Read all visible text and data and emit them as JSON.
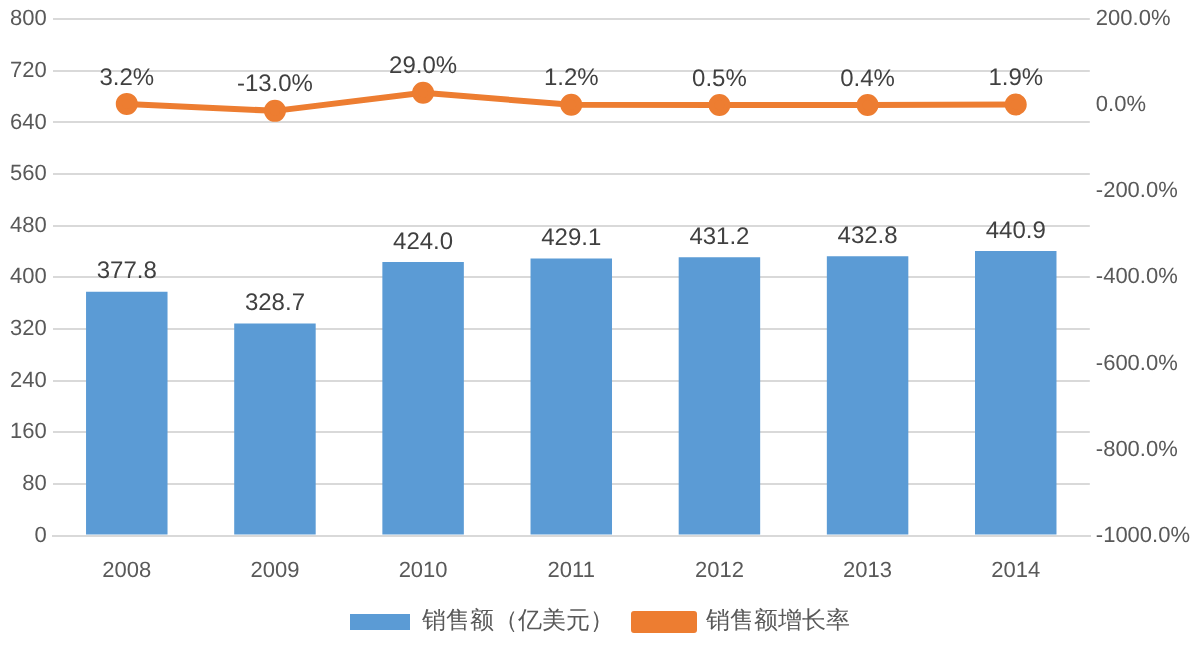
{
  "chart_data": {
    "type": "bar",
    "categories": [
      "2008",
      "2009",
      "2010",
      "2011",
      "2012",
      "2013",
      "2014"
    ],
    "series": [
      {
        "name": "销售额（亿美元）",
        "color": "#5b9bd5",
        "values": [
          377.8,
          328.7,
          424.0,
          429.1,
          431.2,
          432.8,
          440.9
        ],
        "value_labels": [
          "377.8",
          "328.7",
          "424.0",
          "429.1",
          "431.2",
          "432.8",
          "440.9"
        ]
      },
      {
        "name": "销售额增长率",
        "type": "line",
        "axis": "y2",
        "color": "#ed7d31",
        "values": [
          3.2,
          -13.0,
          29.0,
          1.2,
          0.5,
          0.4,
          1.9
        ],
        "value_labels": [
          "3.2%",
          "-13.0%",
          "29.0%",
          "1.2%",
          "0.5%",
          "0.4%",
          "1.9%"
        ]
      }
    ],
    "ylim": [
      0,
      800
    ],
    "yticks": [
      0,
      80,
      160,
      240,
      320,
      400,
      480,
      560,
      640,
      720,
      800
    ],
    "y2lim": [
      -1000,
      200
    ],
    "y2ticks": [
      {
        "value": -1000,
        "label": "-1000.0%"
      },
      {
        "value": -800,
        "label": "-800.0%"
      },
      {
        "value": -600,
        "label": "-600.0%"
      },
      {
        "value": -400,
        "label": "-400.0%"
      },
      {
        "value": -200,
        "label": "-200.0%"
      },
      {
        "value": 0,
        "label": "0.0%"
      },
      {
        "value": 200,
        "label": "200.0%"
      }
    ],
    "grid": "y",
    "legend": "bottom",
    "marker": "circle",
    "line_style": "solid"
  }
}
